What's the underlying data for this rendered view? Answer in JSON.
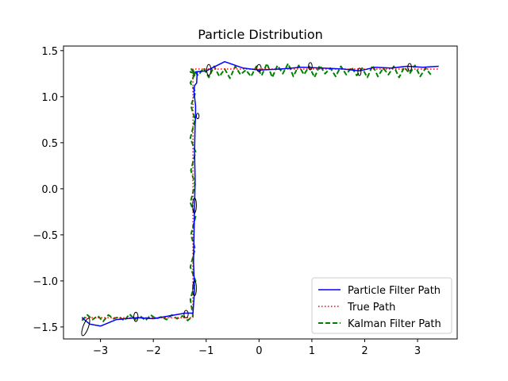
{
  "chart_data": {
    "type": "line",
    "title": "Particle Distribution",
    "xlabel": "",
    "ylabel": "",
    "xlim": [
      -3.7,
      3.75
    ],
    "ylim": [
      -1.63,
      1.55
    ],
    "grid": false,
    "legend_position": "lower-right",
    "x_ticks": [
      -3,
      -2,
      -1,
      0,
      1,
      2,
      3
    ],
    "y_ticks": [
      -1.5,
      -1.0,
      -0.5,
      0.0,
      0.5,
      1.0,
      1.5
    ],
    "x_tick_labels": [
      "−3",
      "−2",
      "−1",
      "0",
      "1",
      "2",
      "3"
    ],
    "y_tick_labels": [
      "−1.5",
      "−1.0",
      "−0.5",
      "0.0",
      "0.5",
      "1.0",
      "1.5"
    ],
    "series": [
      {
        "name": "Particle Filter Path",
        "color": "#0000ff",
        "style": "solid",
        "x": [
          -3.35,
          -3.2,
          -3.0,
          -2.7,
          -2.3,
          -2.0,
          -1.7,
          -1.4,
          -1.25,
          -1.22,
          -1.24,
          -1.23,
          -1.22,
          -1.21,
          -1.22,
          -1.21,
          -1.2,
          -1.2,
          -1.23,
          -1.22,
          -1.18,
          -1.17,
          -1.2,
          -1.0,
          -0.65,
          -0.3,
          0.0,
          0.4,
          0.8,
          1.2,
          1.6,
          1.9,
          2.2,
          2.5,
          2.8,
          3.1,
          3.4
        ],
        "y": [
          -1.4,
          -1.47,
          -1.49,
          -1.42,
          -1.4,
          -1.41,
          -1.38,
          -1.35,
          -1.35,
          -1.1,
          -0.8,
          -0.5,
          -0.2,
          0.1,
          0.4,
          0.7,
          0.78,
          0.9,
          1.05,
          1.12,
          1.15,
          1.27,
          1.27,
          1.28,
          1.38,
          1.31,
          1.29,
          1.3,
          1.32,
          1.31,
          1.3,
          1.28,
          1.32,
          1.31,
          1.33,
          1.32,
          1.33
        ]
      },
      {
        "name": "True Path",
        "color": "#ff0000",
        "style": "dotted",
        "x": [
          -3.35,
          -1.25,
          -1.25,
          3.4
        ],
        "y": [
          -1.4,
          -1.4,
          1.3,
          1.3
        ]
      },
      {
        "name": "Kalman Filter Path",
        "color": "#008000",
        "style": "dashed",
        "x": [
          -3.35,
          -3.25,
          -3.15,
          -3.05,
          -2.95,
          -2.85,
          -2.75,
          -2.65,
          -2.55,
          -2.45,
          -2.35,
          -2.25,
          -2.15,
          -2.05,
          -1.95,
          -1.85,
          -1.75,
          -1.65,
          -1.55,
          -1.45,
          -1.35,
          -1.25,
          -1.3,
          -1.2,
          -1.3,
          -1.21,
          -1.29,
          -1.2,
          -1.3,
          -1.21,
          -1.29,
          -1.2,
          -1.3,
          -1.21,
          -1.29,
          -1.2,
          -1.3,
          -1.21,
          -1.3,
          -1.22,
          -1.28,
          -1.22,
          -1.25,
          -1.15,
          -1.05,
          -0.95,
          -0.85,
          -0.75,
          -0.65,
          -0.55,
          -0.45,
          -0.35,
          -0.25,
          -0.15,
          -0.05,
          0.05,
          0.15,
          0.25,
          0.35,
          0.45,
          0.55,
          0.65,
          0.75,
          0.85,
          0.95,
          1.05,
          1.15,
          1.25,
          1.35,
          1.45,
          1.55,
          1.65,
          1.75,
          1.85,
          1.95,
          2.05,
          2.15,
          2.25,
          2.35,
          2.45,
          2.55,
          2.65,
          2.75,
          2.85,
          2.95,
          3.05,
          3.15,
          3.25
        ],
        "y": [
          -1.43,
          -1.37,
          -1.42,
          -1.38,
          -1.44,
          -1.37,
          -1.41,
          -1.39,
          -1.43,
          -1.36,
          -1.42,
          -1.38,
          -1.43,
          -1.37,
          -1.41,
          -1.39,
          -1.42,
          -1.37,
          -1.41,
          -1.38,
          -1.43,
          -1.38,
          -1.2,
          -1.0,
          -0.85,
          -0.65,
          -0.5,
          -0.3,
          -0.15,
          0.05,
          0.2,
          0.4,
          0.55,
          0.75,
          0.9,
          1.05,
          1.15,
          1.25,
          1.27,
          1.23,
          1.3,
          1.25,
          1.29,
          1.23,
          1.31,
          1.21,
          1.33,
          1.22,
          1.3,
          1.2,
          1.33,
          1.24,
          1.29,
          1.22,
          1.33,
          1.23,
          1.36,
          1.21,
          1.34,
          1.25,
          1.36,
          1.22,
          1.34,
          1.24,
          1.33,
          1.21,
          1.34,
          1.25,
          1.31,
          1.22,
          1.33,
          1.24,
          1.32,
          1.23,
          1.31,
          1.21,
          1.34,
          1.22,
          1.31,
          1.24,
          1.33,
          1.21,
          1.32,
          1.25,
          1.34,
          1.22,
          1.31,
          1.24
        ]
      }
    ],
    "ellipses": [
      {
        "cx": -3.28,
        "cy": -1.5,
        "rx": 0.05,
        "ry": 0.1,
        "angle": 20
      },
      {
        "cx": -2.33,
        "cy": -1.39,
        "rx": 0.04,
        "ry": 0.05,
        "angle": 0
      },
      {
        "cx": -1.38,
        "cy": -1.36,
        "rx": 0.04,
        "ry": 0.04,
        "angle": 0
      },
      {
        "cx": -1.22,
        "cy": -1.08,
        "rx": 0.035,
        "ry": 0.08,
        "angle": 0
      },
      {
        "cx": -1.22,
        "cy": -0.18,
        "rx": 0.035,
        "ry": 0.08,
        "angle": 0
      },
      {
        "cx": -1.16,
        "cy": 0.79,
        "rx": 0.025,
        "ry": 0.03,
        "angle": 0
      },
      {
        "cx": -0.95,
        "cy": 1.29,
        "rx": 0.04,
        "ry": 0.06,
        "angle": 0
      },
      {
        "cx": 0.0,
        "cy": 1.31,
        "rx": 0.04,
        "ry": 0.04,
        "angle": 0
      },
      {
        "cx": 0.97,
        "cy": 1.33,
        "rx": 0.035,
        "ry": 0.04,
        "angle": 0
      },
      {
        "cx": 1.9,
        "cy": 1.27,
        "rx": 0.03,
        "ry": 0.04,
        "angle": 0
      },
      {
        "cx": 2.85,
        "cy": 1.32,
        "rx": 0.035,
        "ry": 0.04,
        "angle": 0
      }
    ]
  }
}
